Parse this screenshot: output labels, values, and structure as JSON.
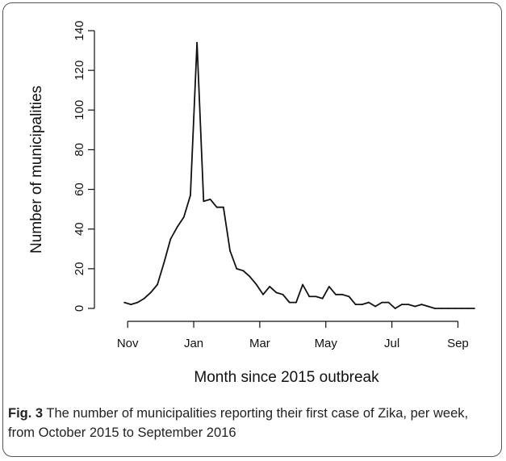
{
  "chart_data": {
    "type": "line",
    "xlabel": "Month since 2015 outbreak",
    "ylabel": "Number of municipalities",
    "ylim": [
      0,
      140
    ],
    "yticks": [
      0,
      20,
      40,
      60,
      80,
      100,
      120,
      140
    ],
    "xlim": [
      -0.5,
      53.5
    ],
    "xticks": [
      {
        "label": "Nov",
        "at": 0.5
      },
      {
        "label": "Jan",
        "at": 10.5
      },
      {
        "label": "Mar",
        "at": 20.5
      },
      {
        "label": "May",
        "at": 30.5
      },
      {
        "label": "Jul",
        "at": 40.5
      },
      {
        "label": "Sep",
        "at": 50.5
      }
    ],
    "line_color": "#111111",
    "series": [
      {
        "x": [
          0,
          1,
          2,
          3,
          4,
          5,
          6,
          7,
          8,
          9,
          10,
          11,
          12,
          13,
          14,
          15,
          16,
          17,
          18,
          19,
          20,
          21,
          22,
          23,
          24,
          25,
          26,
          27,
          28,
          29,
          30,
          31,
          32,
          33,
          34,
          35,
          36,
          37,
          38,
          39,
          40,
          41,
          42,
          43,
          44,
          45,
          46,
          47,
          48,
          49,
          50,
          51,
          52,
          53
        ],
        "values": [
          3,
          2,
          3,
          5,
          8,
          12,
          23,
          35,
          41,
          46,
          57,
          134,
          54,
          55,
          51,
          51,
          29,
          20,
          19,
          16,
          12,
          7,
          11,
          8,
          7,
          3,
          3,
          12,
          6,
          6,
          5,
          11,
          7,
          7,
          6,
          2,
          2,
          3,
          1,
          3,
          3,
          0,
          2,
          2,
          1,
          2,
          1,
          0,
          0,
          0,
          0,
          0,
          0,
          0
        ]
      }
    ]
  },
  "caption": {
    "label": "Fig. 3",
    "text": " The number of municipalities reporting their first case of Zika, per week, from October 2015 to September 2016"
  }
}
